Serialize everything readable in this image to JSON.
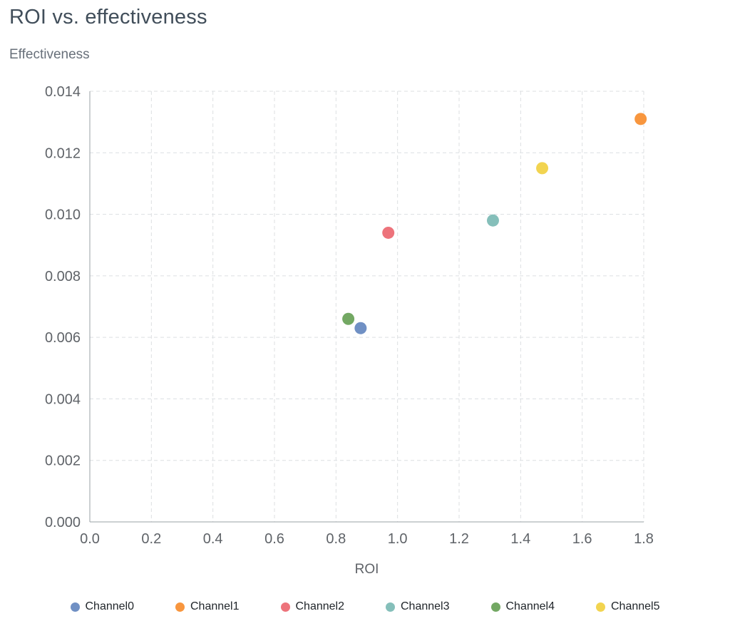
{
  "chart_data": {
    "type": "scatter",
    "title": "ROI vs. effectiveness",
    "xlabel": "ROI",
    "ylabel": "Effectiveness",
    "xlim": [
      0.0,
      1.8
    ],
    "ylim": [
      0.0,
      0.014
    ],
    "x_ticks": [
      "0.0",
      "0.2",
      "0.4",
      "0.6",
      "0.8",
      "1.0",
      "1.2",
      "1.4",
      "1.6",
      "1.8"
    ],
    "y_ticks": [
      "0.000",
      "0.002",
      "0.004",
      "0.006",
      "0.008",
      "0.010",
      "0.012",
      "0.014"
    ],
    "grid": "dashed",
    "legend_position": "bottom",
    "series": [
      {
        "name": "Channel0",
        "color": "#7090c4",
        "points": [
          [
            0.88,
            0.0063
          ]
        ]
      },
      {
        "name": "Channel1",
        "color": "#f8963e",
        "points": [
          [
            1.79,
            0.0131
          ]
        ]
      },
      {
        "name": "Channel2",
        "color": "#ed737b",
        "points": [
          [
            0.97,
            0.0094
          ]
        ]
      },
      {
        "name": "Channel3",
        "color": "#85bfba",
        "points": [
          [
            1.31,
            0.0098
          ]
        ]
      },
      {
        "name": "Channel4",
        "color": "#73a863",
        "points": [
          [
            0.84,
            0.0066
          ]
        ]
      },
      {
        "name": "Channel5",
        "color": "#f2d450",
        "points": [
          [
            1.47,
            0.0115
          ]
        ]
      }
    ]
  },
  "style": {
    "grid_color": "#dcdfe2",
    "axis_color": "#9aa0a6",
    "tick_label_color": "#5f6368",
    "title_color": "#414e5a",
    "point_radius": 8.5
  }
}
